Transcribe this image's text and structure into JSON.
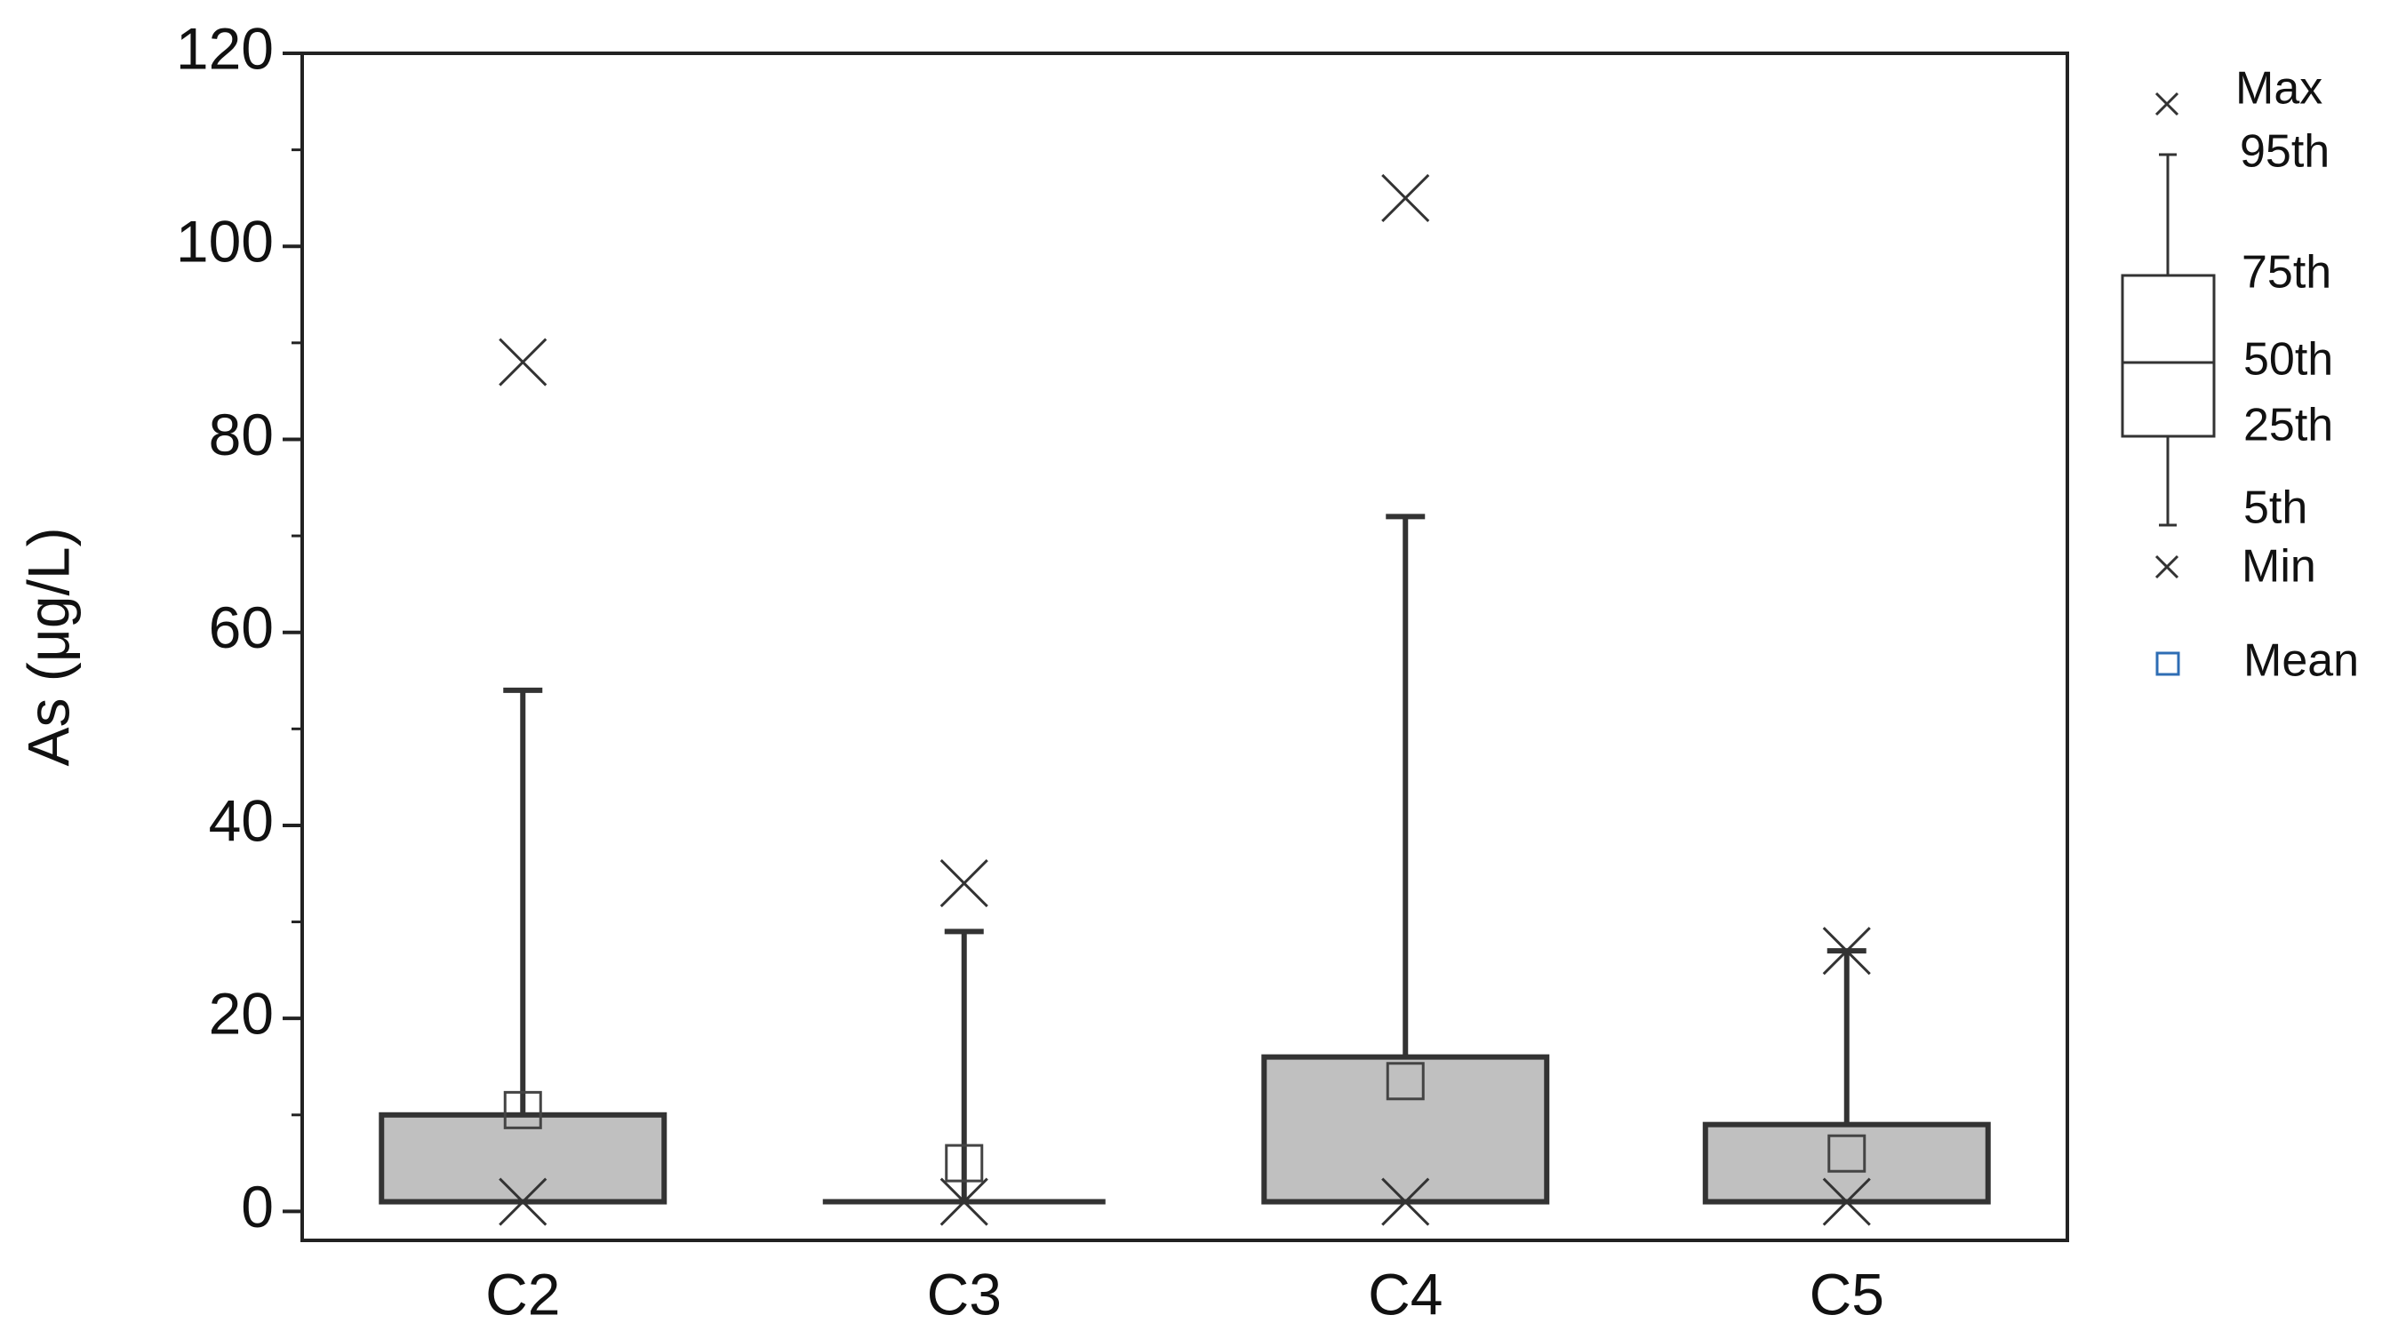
{
  "chart_data": {
    "type": "box",
    "ylabel": "As (μg/L)",
    "categories": [
      "C2",
      "C3",
      "C4",
      "C5"
    ],
    "stats": [
      {
        "min": 1,
        "p5": 1,
        "p25": 1,
        "median": 1,
        "p75": 10,
        "p95": 54,
        "max": 88,
        "mean": 10.5
      },
      {
        "min": 1,
        "p5": 1,
        "p25": 1,
        "median": 1,
        "p75": 1,
        "p95": 29,
        "max": 34,
        "mean": 5
      },
      {
        "min": 1,
        "p5": 1,
        "p25": 1,
        "median": 1,
        "p75": 16,
        "p95": 72,
        "max": 105,
        "mean": 13.5
      },
      {
        "min": 1,
        "p5": 1,
        "p25": 1,
        "median": 1,
        "p75": 9,
        "p95": 27,
        "max": 27,
        "mean": 6
      }
    ],
    "box_color": "#c0c0c0",
    "mean_color": "#2e6db4",
    "ylim": [
      -3,
      120
    ],
    "yticks": [
      0,
      20,
      40,
      60,
      80,
      100,
      120
    ],
    "yminorticks": [
      10,
      30,
      50,
      70,
      90,
      110
    ],
    "legend": {
      "max": "Max",
      "p95": "95th",
      "p75": "75th",
      "median": "50th",
      "p25": "25th",
      "p5": "5th",
      "min": "Min",
      "mean": "Mean"
    }
  }
}
